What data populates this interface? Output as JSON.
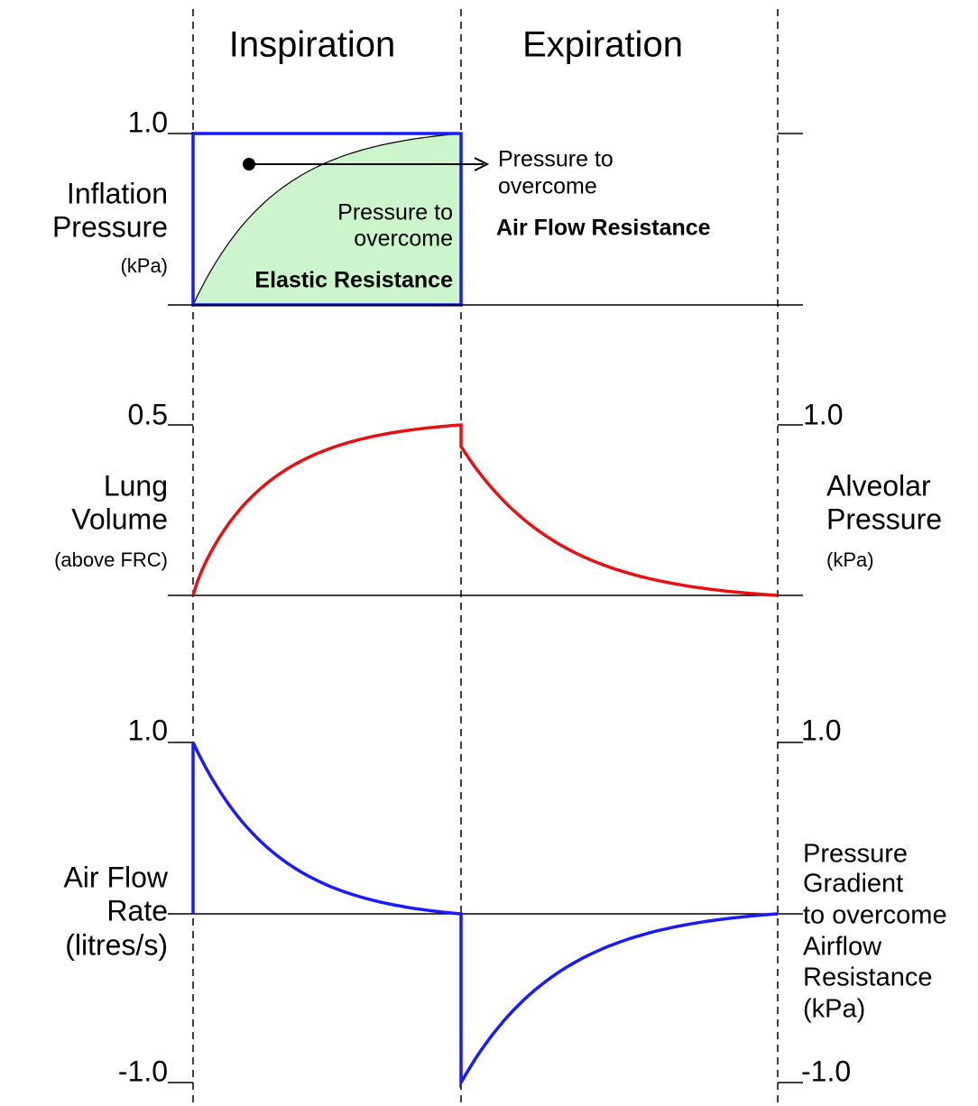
{
  "header": {
    "phases": [
      "Inspiration",
      "Expiration"
    ]
  },
  "panels": [
    {
      "left_label": [
        "Inflation",
        "Pressure",
        "(kPa)"
      ],
      "left_tick": "1.0",
      "annotations": {
        "airflow": [
          "Pressure to",
          "overcome",
          "Air Flow Resistance"
        ],
        "elastic": [
          "Pressure to",
          "overcome",
          "Elastic Resistance"
        ]
      }
    },
    {
      "left_label": [
        "Lung",
        "Volume",
        "(above FRC)"
      ],
      "left_tick": "0.5",
      "right_tick": "1.0",
      "right_label": [
        "Alveolar",
        "Pressure",
        "(kPa)"
      ]
    },
    {
      "left_label": [
        "Air Flow",
        "Rate",
        "(litres/s)"
      ],
      "left_ticks": [
        "1.0",
        "-1.0"
      ],
      "right_ticks": [
        "1.0",
        "-1.0"
      ],
      "right_label": [
        "Pressure",
        "Gradient",
        "to overcome",
        "Airflow",
        "Resistance",
        "(kPa)"
      ]
    }
  ]
}
